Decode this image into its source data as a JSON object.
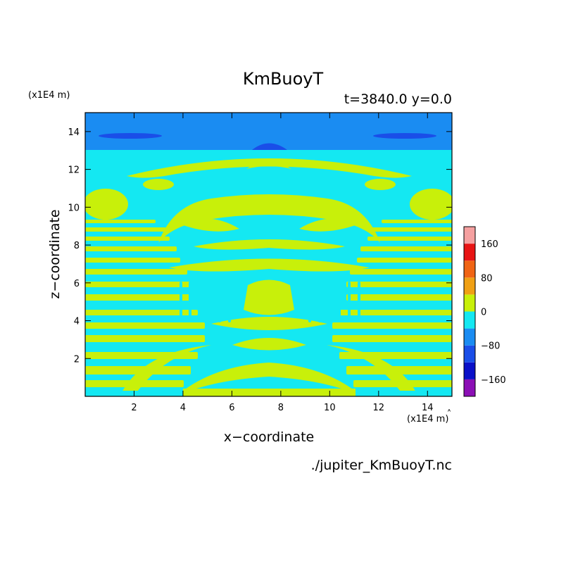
{
  "chart_data": {
    "type": "heatmap",
    "title": "KmBuoyT",
    "info": "t=3840.0 y=0.0",
    "xlabel": "x−coordinate",
    "ylabel": "z−coordinate",
    "x_unit": "(x1E4 m)",
    "z_unit": "(x1E4 m)",
    "xlim": [
      0,
      15
    ],
    "ylim": [
      0,
      15
    ],
    "x_ticks": [
      "2",
      "4",
      "6",
      "8",
      "10",
      "12",
      "14"
    ],
    "y_ticks": [
      "2",
      "4",
      "6",
      "8",
      "10",
      "12",
      "14"
    ],
    "colorbar": {
      "levels": [
        -200,
        -160,
        -120,
        -80,
        -40,
        0,
        40,
        80,
        120,
        160,
        200
      ],
      "colors": [
        "#8b0fb5",
        "#0a10c8",
        "#1a4ee8",
        "#1a8cf2",
        "#14e8f2",
        "#c8f00a",
        "#f0a014",
        "#f06414",
        "#e81414",
        "#f5a0a0"
      ],
      "tick_labels": [
        "−160",
        "−80",
        "0",
        "80",
        "160"
      ],
      "tick_values": [
        -160,
        -80,
        0,
        80,
        160
      ]
    }
  },
  "footer": {
    "filename": "./jupiter_KmBuoyT.nc"
  }
}
